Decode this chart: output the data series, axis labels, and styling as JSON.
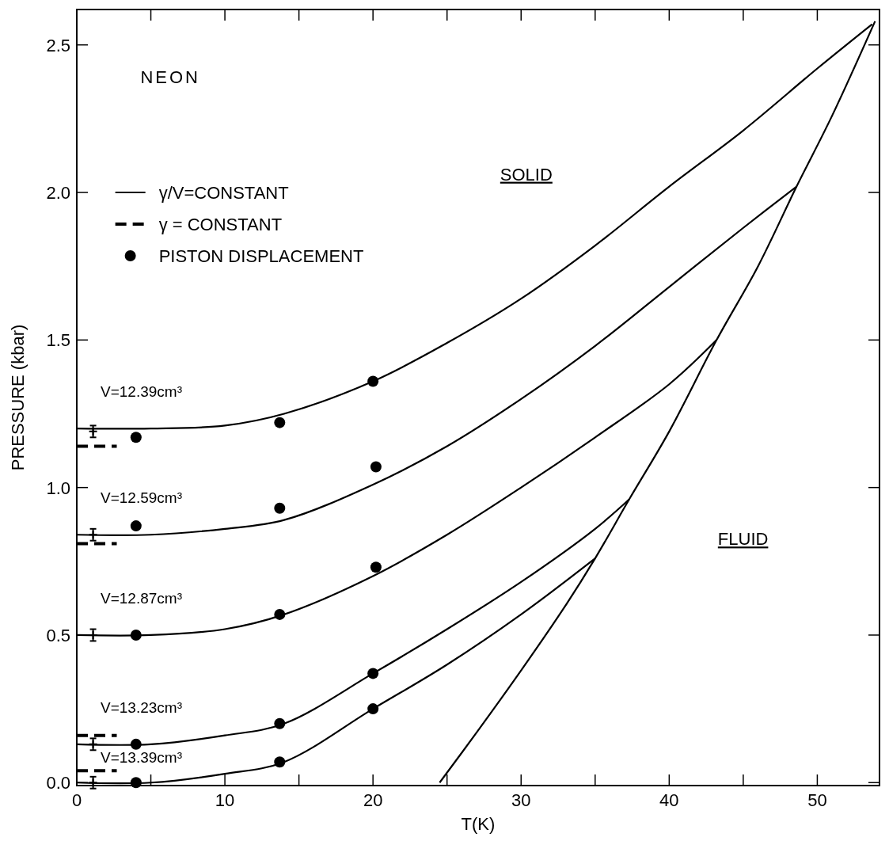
{
  "chart_data": {
    "type": "line",
    "title": "NEON",
    "xlabel": "T(K)",
    "ylabel": "PRESSURE (kbar)",
    "xlim": [
      0,
      54.2
    ],
    "ylim": [
      -0.01,
      2.62
    ],
    "xticks": [
      0,
      {
        "value": 5,
        "label": null
      },
      10,
      {
        "value": 15,
        "label": null
      },
      20,
      {
        "value": 25,
        "label": null
      },
      30,
      {
        "value": 35,
        "label": null
      },
      40,
      {
        "value": 45,
        "label": null
      },
      50
    ],
    "yticks": [
      {
        "value": 0,
        "label": "0.0"
      },
      0.5,
      {
        "value": 1,
        "label": "1.0"
      },
      1.5,
      {
        "value": 2,
        "label": "2.0"
      },
      2.5
    ],
    "grid": false,
    "legend": "top left",
    "line_style": "solid",
    "series": [
      {
        "name": "γ/V=CONSTANT",
        "color": "#000000",
        "x": [
          0,
          5,
          10,
          14,
          20,
          25,
          30,
          35,
          40,
          45,
          50,
          53.7
        ],
        "values": [
          1.2,
          1.2,
          1.21,
          1.25,
          1.36,
          1.49,
          1.64,
          1.82,
          2.02,
          2.21,
          2.42,
          2.57
        ]
      },
      {
        "color": "#000000",
        "x": [
          0,
          5,
          10,
          14,
          20,
          25,
          30,
          35,
          40,
          45,
          48.6
        ],
        "values": [
          0.84,
          0.84,
          0.86,
          0.89,
          1.01,
          1.14,
          1.3,
          1.48,
          1.68,
          1.88,
          2.02
        ]
      },
      {
        "color": "#000000",
        "x": [
          0,
          5,
          10,
          14,
          20,
          25,
          30,
          35,
          40,
          43.2
        ],
        "values": [
          0.5,
          0.5,
          0.52,
          0.57,
          0.7,
          0.84,
          1.0,
          1.17,
          1.35,
          1.5
        ]
      },
      {
        "color": "#000000",
        "x": [
          0,
          5,
          10,
          14,
          20,
          25,
          30,
          35,
          37.3
        ],
        "values": [
          0.13,
          0.13,
          0.16,
          0.2,
          0.37,
          0.52,
          0.68,
          0.86,
          0.96
        ]
      },
      {
        "color": "#000000",
        "x": [
          0,
          5,
          10,
          14,
          20,
          25,
          30,
          35
        ],
        "values": [
          0.0,
          0.0,
          0.03,
          0.07,
          0.25,
          0.4,
          0.57,
          0.76
        ]
      },
      {
        "color": "#000000",
        "x": [
          24.5,
          27,
          30,
          33,
          35,
          37.3,
          40,
          43.2,
          46,
          48.6,
          51,
          53.9
        ],
        "values": [
          0.0,
          0.17,
          0.38,
          0.6,
          0.76,
          0.96,
          1.19,
          1.5,
          1.75,
          2.02,
          2.26,
          2.58
        ]
      },
      {
        "name": "γ = CONSTANT",
        "color": "#000000",
        "line_style": "dashed",
        "x": [
          0,
          2.7
        ],
        "values": [
          1.14,
          1.14
        ]
      },
      {
        "color": "#000000",
        "line_style": "dashed",
        "x": [
          0,
          2.7
        ],
        "values": [
          0.81,
          0.81
        ]
      },
      {
        "color": "#000000",
        "line_style": "dashed",
        "x": [
          0,
          2.7
        ],
        "values": [
          0.16,
          0.16
        ]
      },
      {
        "color": "#000000",
        "line_style": "dashed",
        "x": [
          0,
          2.7
        ],
        "values": [
          0.04,
          0.04
        ]
      },
      {
        "name": "PISTON DISPLACEMENT",
        "type": "scatter",
        "marker": "circle",
        "color": "#000000",
        "x": [
          4,
          13.7,
          20,
          4,
          13.7,
          20.2,
          4,
          13.7,
          20.2,
          4,
          13.7,
          20,
          4,
          13.7,
          20
        ],
        "values": [
          1.17,
          1.22,
          1.36,
          0.87,
          0.93,
          1.07,
          0.5,
          0.57,
          0.73,
          0.13,
          0.2,
          0.37,
          0.0,
          0.07,
          0.25
        ]
      },
      {
        "type": "scatter",
        "marker": "cross",
        "color": "#000000",
        "x": [
          1.1,
          1.1,
          1.1,
          1.1,
          1.1
        ],
        "values": [
          1.19,
          0.84,
          0.5,
          0.13,
          0.0
        ],
        "errors": [
          0.02,
          0.02,
          0.02,
          0.02,
          0.02
        ]
      }
    ],
    "annotations": [
      "V=12.39cm³",
      "V=12.59cm³",
      "V=12.87cm³",
      "V=13.23cm³",
      "V=13.39cm³",
      "SOLID",
      "FLUID"
    ]
  }
}
